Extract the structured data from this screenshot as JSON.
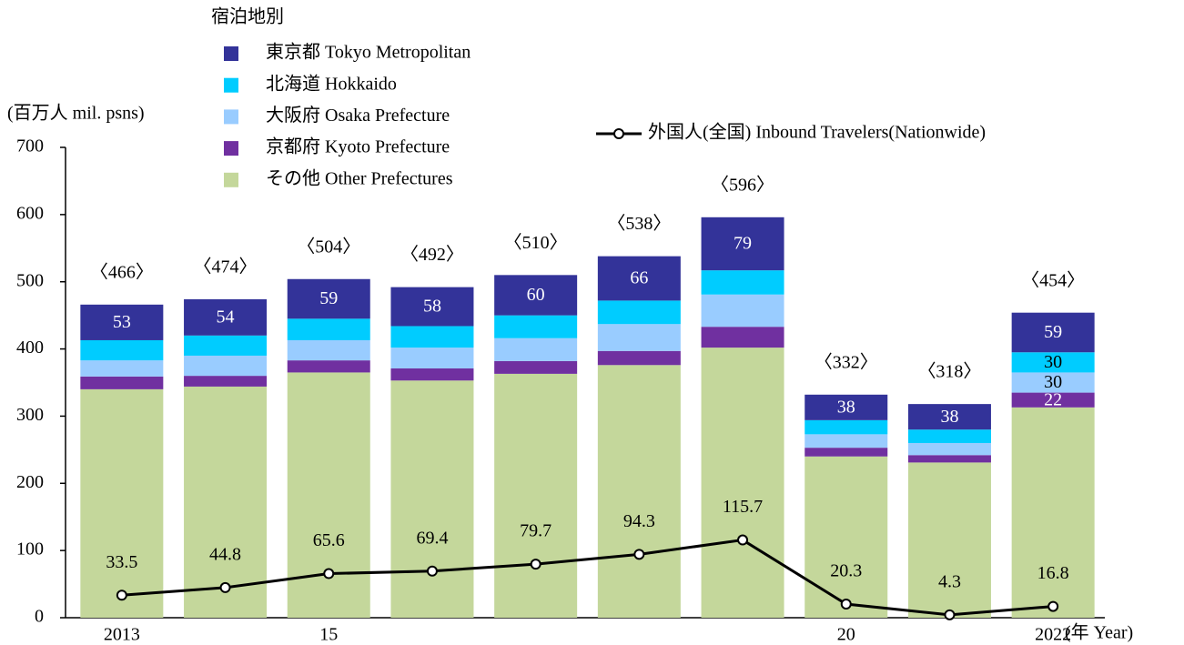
{
  "chart_data": {
    "type": "stacked-bar-line",
    "y_label": "(百万人 mil. psns)",
    "x_label": "(年 Year)",
    "legend_title": "宿泊地別",
    "categories": [
      "2013",
      null,
      "15",
      null,
      null,
      null,
      null,
      "20",
      null,
      "2022"
    ],
    "ylim": [
      0,
      700
    ],
    "yticks": [
      0,
      100,
      200,
      300,
      400,
      500,
      600,
      700
    ],
    "series": [
      {
        "name": "その他 Other Prefectures",
        "color": "#c4d79b",
        "values": [
          340,
          344,
          365,
          353,
          363,
          376,
          402,
          240,
          231,
          313
        ]
      },
      {
        "name": "京都府 Kyoto Prefecture",
        "color": "#7030a0",
        "values": [
          19,
          16,
          18,
          18,
          19,
          21,
          31,
          13,
          11,
          22
        ],
        "value_labels": [
          null,
          null,
          null,
          null,
          null,
          null,
          null,
          null,
          null,
          "22"
        ],
        "label_color": "#ffffff"
      },
      {
        "name": "大阪府 Osaka Prefecture",
        "color": "#99ccff",
        "values": [
          24,
          30,
          30,
          31,
          34,
          40,
          48,
          20,
          18,
          30
        ],
        "value_labels": [
          null,
          null,
          null,
          null,
          null,
          null,
          null,
          null,
          null,
          "30"
        ],
        "label_color": "#000000"
      },
      {
        "name": "北海道 Hokkaido",
        "color": "#00ccff",
        "values": [
          30,
          30,
          32,
          32,
          34,
          35,
          36,
          21,
          20,
          30
        ],
        "value_labels": [
          null,
          null,
          null,
          null,
          null,
          null,
          null,
          null,
          null,
          "30"
        ],
        "label_color": "#000000"
      },
      {
        "name": "東京都 Tokyo Metropolitan",
        "color": "#333399",
        "values": [
          53,
          54,
          59,
          58,
          60,
          66,
          79,
          38,
          38,
          59
        ],
        "value_labels": [
          "53",
          "54",
          "59",
          "58",
          "60",
          "66",
          "79",
          "38",
          "38",
          "59"
        ],
        "label_color": "#ffffff"
      }
    ],
    "totals": {
      "values": [
        466,
        474,
        504,
        492,
        510,
        538,
        596,
        332,
        318,
        454
      ],
      "value_labels": [
        "〈466〉",
        "〈474〉",
        "〈504〉",
        "〈492〉",
        "〈510〉",
        "〈538〉",
        "〈596〉",
        "〈332〉",
        "〈318〉",
        "〈454〉"
      ]
    },
    "line": {
      "name": "外国人(全国) Inbound Travelers(Nationwide)",
      "color": "#000000",
      "values": [
        33.5,
        44.8,
        65.6,
        69.4,
        79.7,
        94.3,
        115.7,
        20.3,
        4.3,
        16.8
      ]
    }
  }
}
